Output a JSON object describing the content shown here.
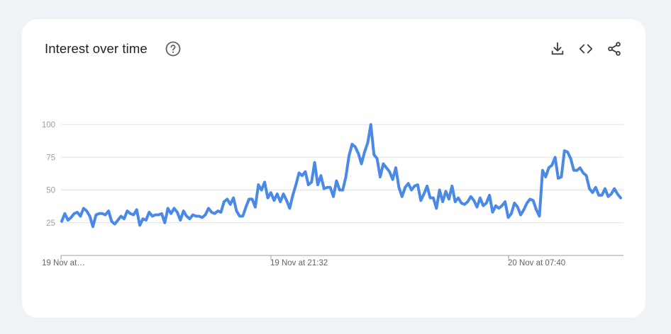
{
  "header": {
    "title": "Interest over time",
    "help_icon": "help-circle-icon",
    "actions": [
      "download-icon",
      "embed-code-icon",
      "share-icon"
    ]
  },
  "colors": {
    "line": "#4a89e6",
    "grid": "#e0e0e0",
    "background": "#eff2f7"
  },
  "chart_data": {
    "type": "line",
    "title": "",
    "xlabel": "",
    "ylabel": "",
    "ylim": [
      0,
      100
    ],
    "y_ticks": [
      25,
      50,
      75,
      100
    ],
    "x_tick_labels": [
      "19 Nov at…",
      "19 Nov at 21:32",
      "20 Nov at 07:40"
    ],
    "grid": true,
    "series": [
      {
        "values": [
          26,
          32,
          27,
          29,
          32,
          33,
          30,
          36,
          34,
          30,
          22,
          31,
          32,
          32,
          31,
          34,
          26,
          24,
          27,
          30,
          28,
          34,
          32,
          31,
          35,
          23,
          28,
          27,
          33,
          30,
          31,
          31,
          32,
          25,
          36,
          32,
          36,
          33,
          27,
          34,
          30,
          28,
          31,
          30,
          30,
          29,
          31,
          36,
          33,
          32,
          34,
          33,
          41,
          43,
          39,
          44,
          34,
          30,
          30,
          37,
          43,
          43,
          37,
          54,
          50,
          56,
          44,
          48,
          42,
          47,
          41,
          47,
          42,
          36,
          46,
          54,
          63,
          61,
          64,
          54,
          56,
          71,
          54,
          61,
          51,
          52,
          52,
          45,
          57,
          50,
          50,
          60,
          76,
          85,
          83,
          78,
          70,
          79,
          86,
          100,
          77,
          74,
          60,
          70,
          67,
          64,
          58,
          67,
          52,
          45,
          52,
          55,
          50,
          53,
          54,
          42,
          47,
          53,
          44,
          44,
          36,
          50,
          41,
          49,
          43,
          53,
          41,
          44,
          40,
          39,
          41,
          45,
          42,
          37,
          44,
          38,
          40,
          46,
          33,
          38,
          36,
          38,
          41,
          29,
          32,
          40,
          37,
          31,
          35,
          40,
          43,
          42,
          35,
          30,
          65,
          60,
          67,
          69,
          75,
          59,
          60,
          80,
          79,
          74,
          65,
          65,
          67,
          63,
          61,
          51,
          48,
          52,
          46,
          46,
          51,
          45,
          47,
          51,
          47,
          44
        ]
      }
    ]
  }
}
